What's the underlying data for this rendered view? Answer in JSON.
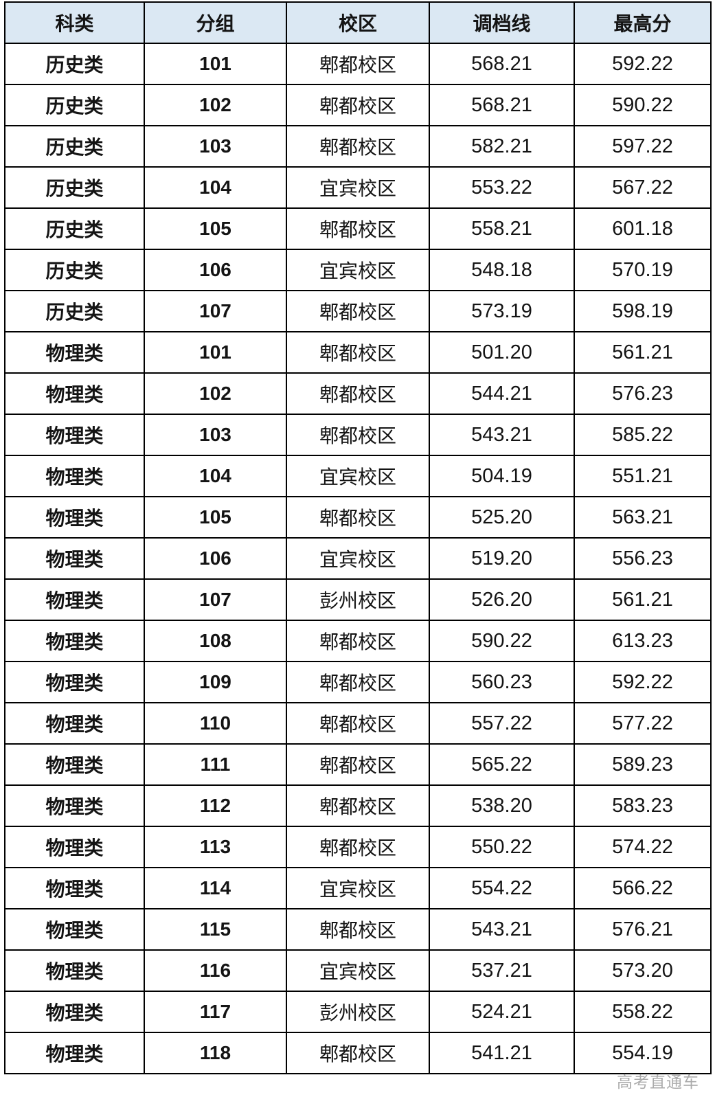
{
  "colors": {
    "header_bg": "#dbe8f3",
    "border": "#000000",
    "text": "#141414",
    "watermark": "#a2a2a2"
  },
  "watermark": {
    "text": "高考直通车"
  },
  "chart_data": {
    "type": "table",
    "title": "",
    "columns": [
      "科类",
      "分组",
      "校区",
      "调档线",
      "最高分"
    ],
    "column_keys": [
      "category",
      "group",
      "campus",
      "cutoff-score",
      "highest-score"
    ],
    "rows": [
      [
        "历史类",
        "101",
        "郫都校区",
        "568.21",
        "592.22"
      ],
      [
        "历史类",
        "102",
        "郫都校区",
        "568.21",
        "590.22"
      ],
      [
        "历史类",
        "103",
        "郫都校区",
        "582.21",
        "597.22"
      ],
      [
        "历史类",
        "104",
        "宜宾校区",
        "553.22",
        "567.22"
      ],
      [
        "历史类",
        "105",
        "郫都校区",
        "558.21",
        "601.18"
      ],
      [
        "历史类",
        "106",
        "宜宾校区",
        "548.18",
        "570.19"
      ],
      [
        "历史类",
        "107",
        "郫都校区",
        "573.19",
        "598.19"
      ],
      [
        "物理类",
        "101",
        "郫都校区",
        "501.20",
        "561.21"
      ],
      [
        "物理类",
        "102",
        "郫都校区",
        "544.21",
        "576.23"
      ],
      [
        "物理类",
        "103",
        "郫都校区",
        "543.21",
        "585.22"
      ],
      [
        "物理类",
        "104",
        "宜宾校区",
        "504.19",
        "551.21"
      ],
      [
        "物理类",
        "105",
        "郫都校区",
        "525.20",
        "563.21"
      ],
      [
        "物理类",
        "106",
        "宜宾校区",
        "519.20",
        "556.23"
      ],
      [
        "物理类",
        "107",
        "彭州校区",
        "526.20",
        "561.21"
      ],
      [
        "物理类",
        "108",
        "郫都校区",
        "590.22",
        "613.23"
      ],
      [
        "物理类",
        "109",
        "郫都校区",
        "560.23",
        "592.22"
      ],
      [
        "物理类",
        "110",
        "郫都校区",
        "557.22",
        "577.22"
      ],
      [
        "物理类",
        "111",
        "郫都校区",
        "565.22",
        "589.23"
      ],
      [
        "物理类",
        "112",
        "郫都校区",
        "538.20",
        "583.23"
      ],
      [
        "物理类",
        "113",
        "郫都校区",
        "550.22",
        "574.22"
      ],
      [
        "物理类",
        "114",
        "宜宾校区",
        "554.22",
        "566.22"
      ],
      [
        "物理类",
        "115",
        "郫都校区",
        "543.21",
        "576.21"
      ],
      [
        "物理类",
        "116",
        "宜宾校区",
        "537.21",
        "573.20"
      ],
      [
        "物理类",
        "117",
        "彭州校区",
        "524.21",
        "558.22"
      ],
      [
        "物理类",
        "118",
        "郫都校区",
        "541.21",
        "554.19"
      ]
    ]
  }
}
